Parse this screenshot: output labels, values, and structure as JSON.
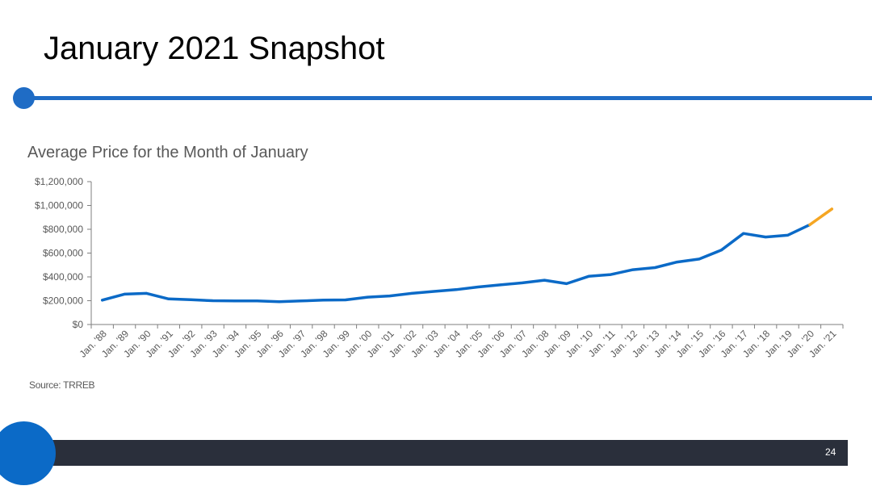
{
  "slide": {
    "title": "January 2021 Snapshot",
    "source": "Source: TRREB",
    "page_number": "24"
  },
  "colors": {
    "accent_blue": "#1F6CC5",
    "circle_blue": "#0B6AC7",
    "footer_dark": "#2A2F3B",
    "line_blue": "#0B6AC7",
    "line_orange": "#F5A623",
    "axis": "#7F7F7F",
    "text_gray": "#595959"
  },
  "chart_data": {
    "type": "line",
    "title": "Average Price for the Month of January",
    "xlabel": "",
    "ylabel": "",
    "ylim": [
      0,
      1200000
    ],
    "y_ticks": [
      0,
      200000,
      400000,
      600000,
      800000,
      1000000,
      1200000
    ],
    "y_tick_labels": [
      "$0",
      "$200,000",
      "$400,000",
      "$600,000",
      "$800,000",
      "$1,000,000",
      "$1,200,000"
    ],
    "categories": [
      "Jan. '88",
      "Jan. '89",
      "Jan. '90",
      "Jan. '91",
      "Jan. '92",
      "Jan. '93",
      "Jan. '94",
      "Jan. '95",
      "Jan. '96",
      "Jan. '97",
      "Jan. '98",
      "Jan. '99",
      "Jan. '00",
      "Jan. '01",
      "Jan. '02",
      "Jan. '03",
      "Jan. '04",
      "Jan. '05",
      "Jan. '06",
      "Jan. '07",
      "Jan. '08",
      "Jan. '09",
      "Jan. '10",
      "Jan. '11",
      "Jan. '12",
      "Jan. '13",
      "Jan. '14",
      "Jan. '15",
      "Jan. '16",
      "Jan. '17",
      "Jan. '18",
      "Jan. '19",
      "Jan. '20",
      "Jan. '21"
    ],
    "values": [
      205000,
      255000,
      262000,
      215000,
      208000,
      200000,
      198000,
      198000,
      192000,
      198000,
      205000,
      207000,
      230000,
      240000,
      262000,
      278000,
      293000,
      315000,
      333000,
      350000,
      372000,
      343000,
      405000,
      420000,
      460000,
      478000,
      525000,
      550000,
      625000,
      765000,
      735000,
      750000,
      838000,
      970000
    ],
    "highlight_from_index": 32,
    "grid": false,
    "legend": "none"
  }
}
